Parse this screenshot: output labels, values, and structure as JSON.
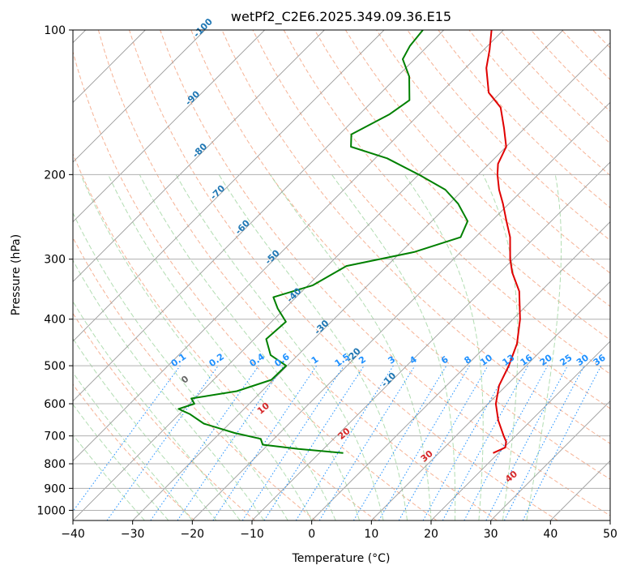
{
  "chart_data": {
    "type": "line",
    "title": "wetPf2_C2E6.2025.349.09.36.E15",
    "xlabel": "Temperature (°C)",
    "ylabel": "Pressure (hPa)",
    "xlim": [
      -40,
      50
    ],
    "ylim": [
      1050,
      100
    ],
    "y_scale": "log",
    "grid": true,
    "x_ticks": [
      -40,
      -30,
      -20,
      -10,
      0,
      10,
      20,
      30,
      40,
      50
    ],
    "y_ticks": [
      100,
      200,
      300,
      400,
      500,
      600,
      700,
      800,
      900,
      1000
    ],
    "colors": {
      "temperature": "#e00000",
      "dewpoint": "#008000",
      "isotherm_label": "#1f77b4",
      "mixing_ratio": "#1e90ff",
      "dry_adiabat": "#f4a582",
      "moist_adiabat": "#9fd49f",
      "theta_label": "#d62728"
    },
    "isotherm_labels": [
      "-100",
      "-90",
      "-80",
      "-70",
      "-60",
      "-50",
      "-40",
      "-30",
      "-20",
      "-10"
    ],
    "mixing_ratio_labels": [
      "0.1",
      "0.2",
      "0.4",
      "0.6",
      "1",
      "1.5",
      "2",
      "3",
      "4",
      "6",
      "8",
      "10",
      "13",
      "16",
      "20",
      "25",
      "30",
      "36"
    ],
    "theta_labels": [
      "0",
      "10",
      "20",
      "30",
      "40"
    ],
    "series": [
      {
        "name": "temperature",
        "points": [
          [
            760,
            19.1
          ],
          [
            740,
            20.2
          ],
          [
            720,
            19.4
          ],
          [
            700,
            18.0
          ],
          [
            650,
            14.5
          ],
          [
            600,
            11.3
          ],
          [
            550,
            8.8
          ],
          [
            500,
            7.1
          ],
          [
            450,
            4.8
          ],
          [
            400,
            1.2
          ],
          [
            350,
            -3.6
          ],
          [
            320,
            -7.9
          ],
          [
            300,
            -10.5
          ],
          [
            270,
            -14.2
          ],
          [
            250,
            -17.5
          ],
          [
            230,
            -21.0
          ],
          [
            215,
            -24.0
          ],
          [
            200,
            -26.8
          ],
          [
            190,
            -28.5
          ],
          [
            175,
            -30.0
          ],
          [
            160,
            -33.5
          ],
          [
            145,
            -37.5
          ],
          [
            135,
            -42.0
          ],
          [
            120,
            -46.5
          ],
          [
            110,
            -49.0
          ],
          [
            100,
            -52.0
          ]
        ]
      },
      {
        "name": "dewpoint",
        "points": [
          [
            760,
            -6.0
          ],
          [
            745,
            -14.2
          ],
          [
            730,
            -20.9
          ],
          [
            710,
            -22.2
          ],
          [
            690,
            -27.6
          ],
          [
            660,
            -34.3
          ],
          [
            630,
            -38.3
          ],
          [
            615,
            -41.0
          ],
          [
            600,
            -39.2
          ],
          [
            585,
            -40.6
          ],
          [
            565,
            -34.2
          ],
          [
            535,
            -30.3
          ],
          [
            500,
            -30.2
          ],
          [
            475,
            -34.6
          ],
          [
            440,
            -38.0
          ],
          [
            405,
            -37.6
          ],
          [
            380,
            -41.2
          ],
          [
            360,
            -43.8
          ],
          [
            340,
            -39.2
          ],
          [
            310,
            -36.8
          ],
          [
            290,
            -27.8
          ],
          [
            270,
            -22.5
          ],
          [
            250,
            -24.0
          ],
          [
            230,
            -28.5
          ],
          [
            215,
            -33.0
          ],
          [
            200,
            -40.0
          ],
          [
            185,
            -48.0
          ],
          [
            175,
            -56.0
          ],
          [
            165,
            -58.0
          ],
          [
            150,
            -55.0
          ],
          [
            140,
            -54.0
          ],
          [
            125,
            -58.0
          ],
          [
            115,
            -62.0
          ],
          [
            108,
            -63.0
          ],
          [
            100,
            -63.5
          ]
        ]
      }
    ]
  }
}
